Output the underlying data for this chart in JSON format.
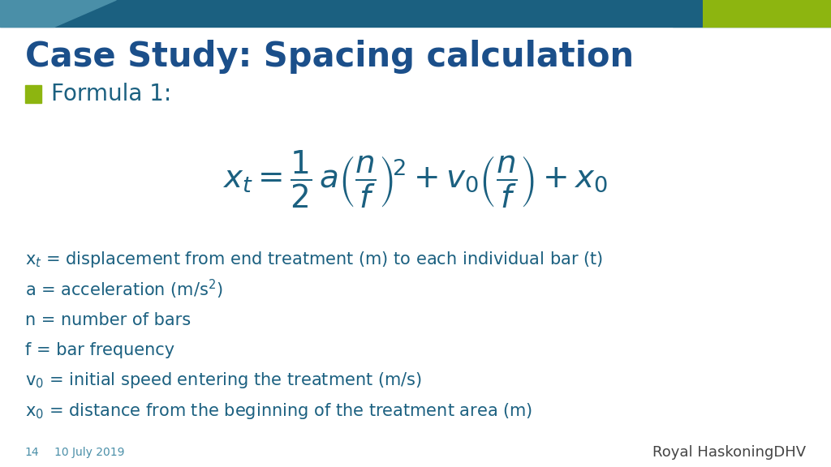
{
  "title": "Case Study: Spacing calculation",
  "title_color": "#1b4f8a",
  "subtitle": "Formula 1:",
  "subtitle_color": "#1b6080",
  "bullet_color": "#8db510",
  "formula_color": "#1b6080",
  "bg_color": "#ffffff",
  "footer_num": "14",
  "footer_date": "10 July 2019",
  "footer_logo": "Royal HaskoningDHV",
  "footer_color": "#4a8fa8",
  "text_color": "#1b6080",
  "header_dark": "#1b6080",
  "header_light": "#4a8fa8",
  "header_green": "#8db510",
  "bullet_lines": [
    "x$_t$ = displacement from end treatment (m) to each individual bar (t)",
    "a = acceleration (m/s$^2$)",
    "n = number of bars",
    "f = bar frequency",
    "v$_0$ = initial speed entering the treatment (m/s)",
    "x$_0$ = distance from the beginning of the treatment area (m)"
  ],
  "formula_latex": "$x_t = \\dfrac{1}{2}\\,a\\left(\\dfrac{n}{f}\\right)^{\\!2} + v_0\\left(\\dfrac{n}{f}\\right) + x_0$",
  "title_fontsize": 30,
  "subtitle_fontsize": 20,
  "formula_fontsize": 28,
  "body_fontsize": 15,
  "footer_fontsize": 10,
  "logo_fontsize": 13
}
